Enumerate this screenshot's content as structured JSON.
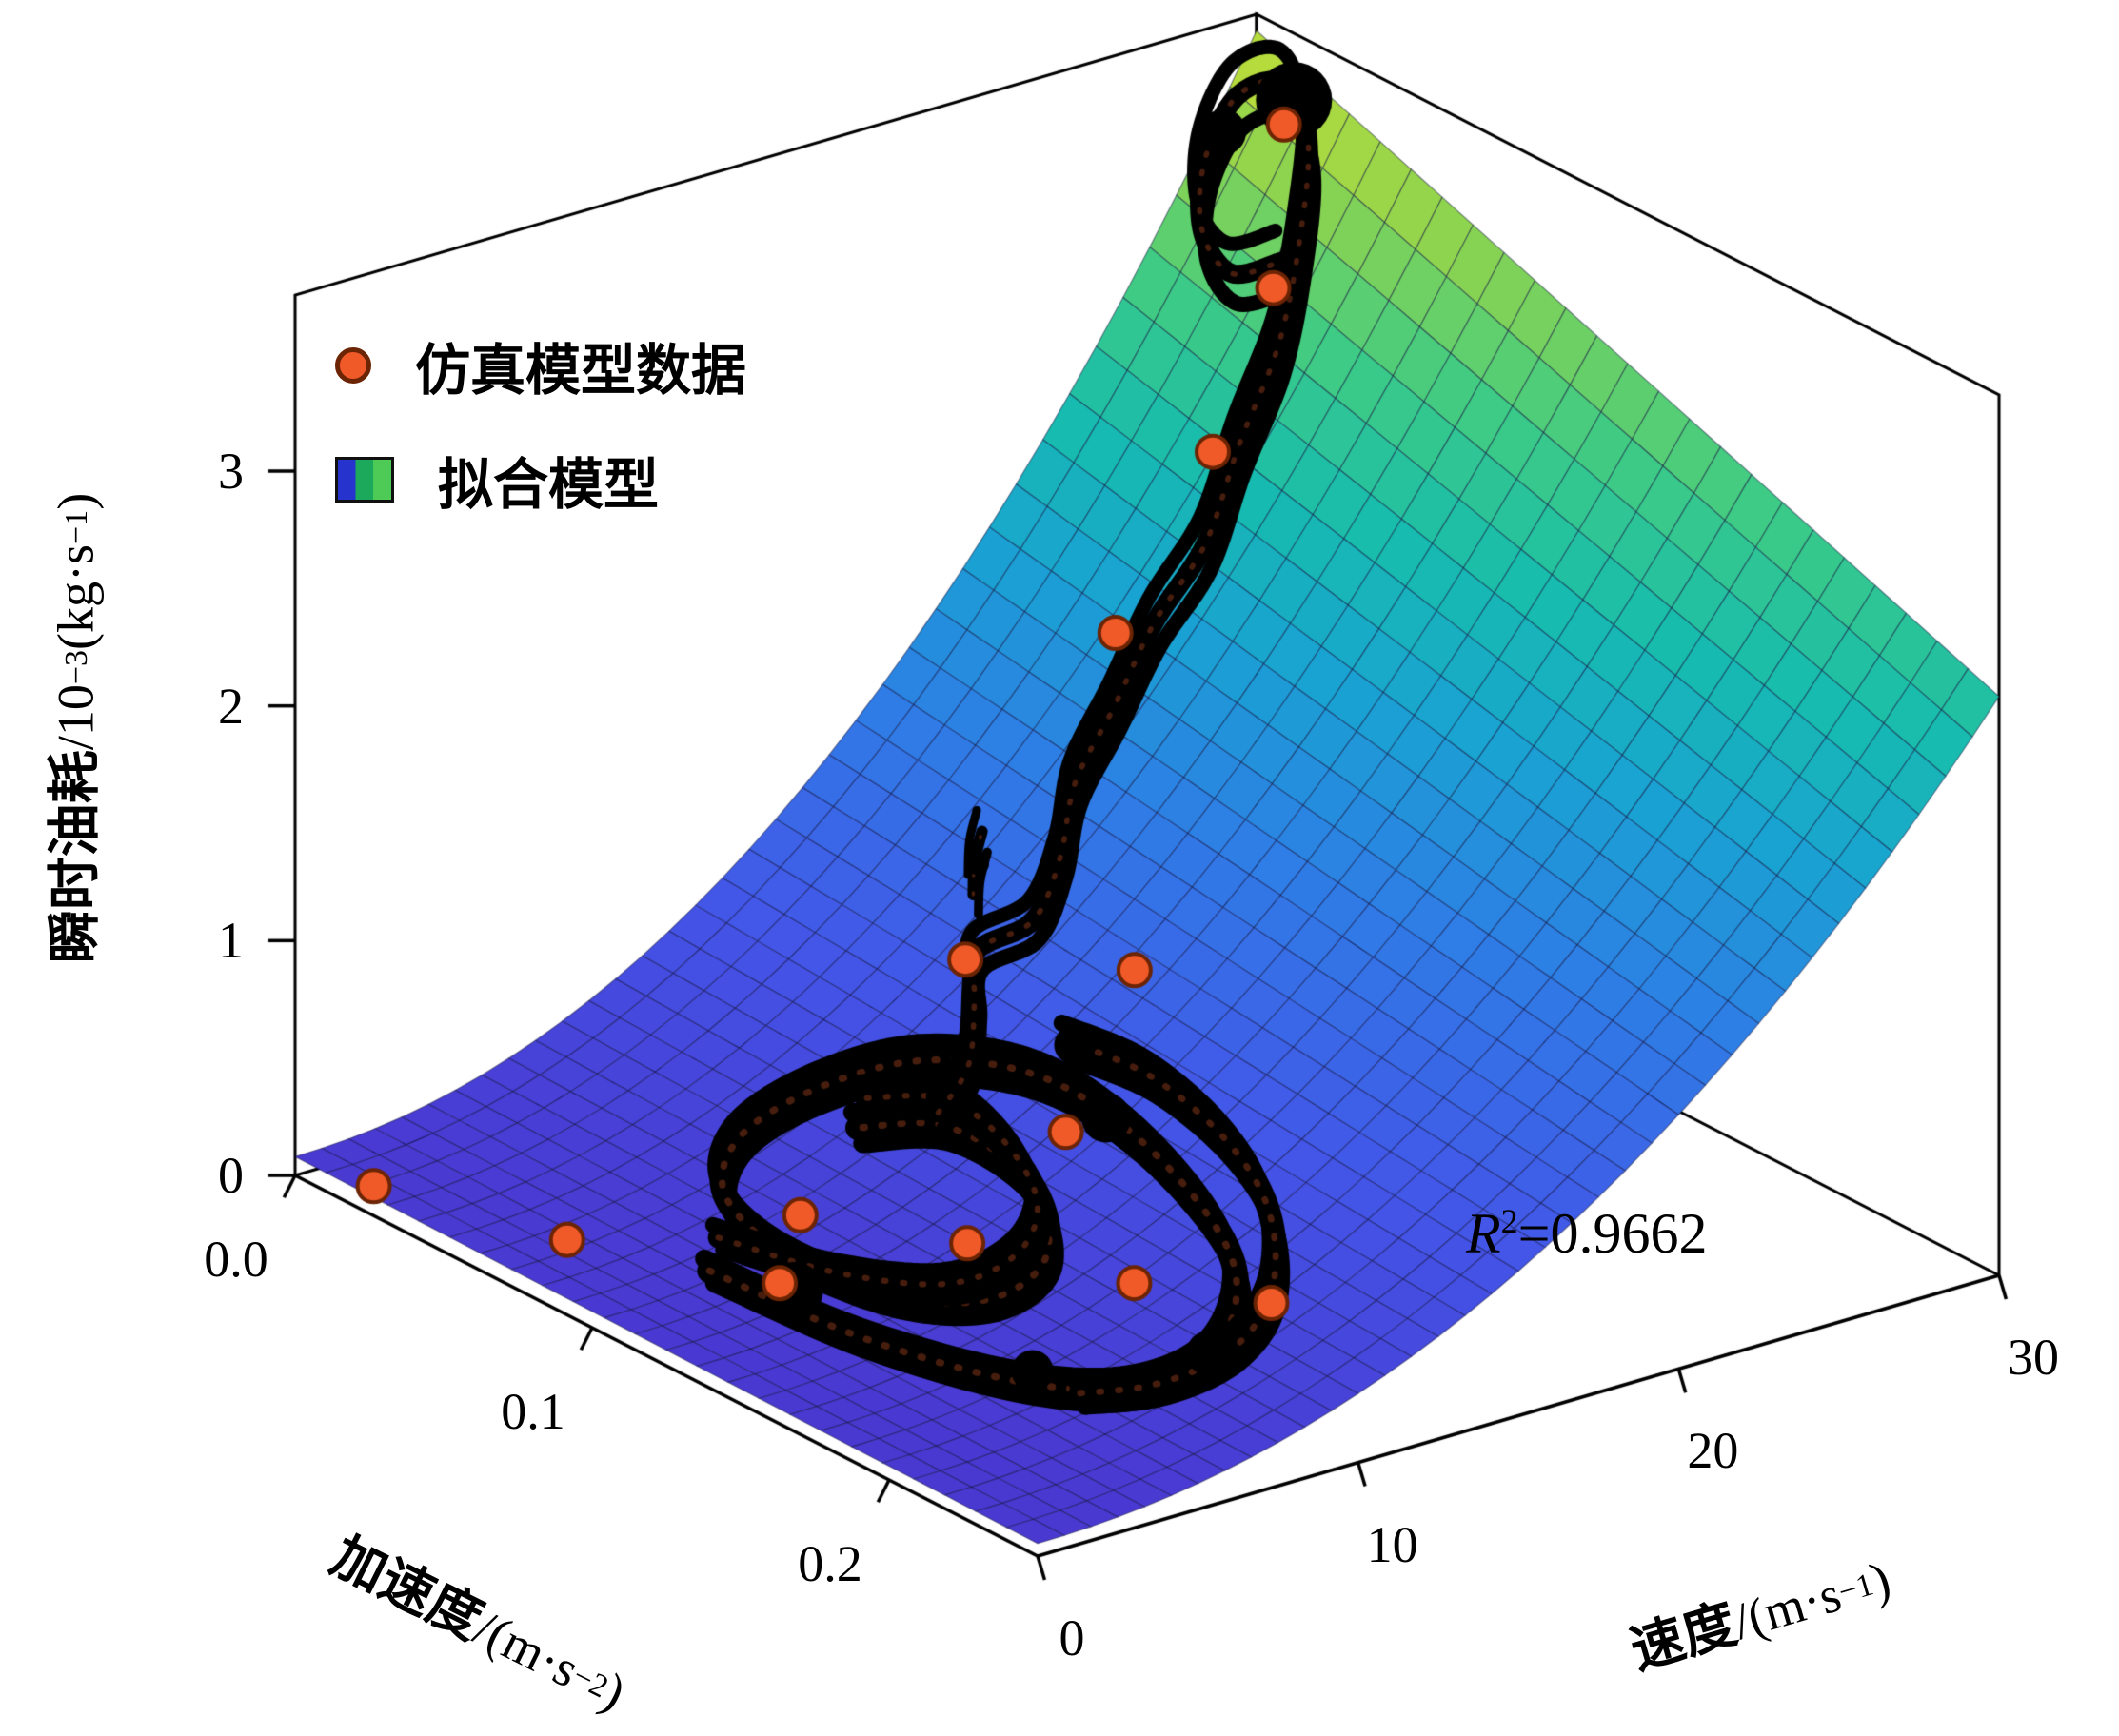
{
  "figure": {
    "background": "#ffffff"
  },
  "legend": [
    {
      "label": "仿真模型数据",
      "marker": "orange-circle",
      "marker_color": "#f05a28",
      "marker_edge": "#6b2404"
    },
    {
      "label": "拟合模型",
      "marker": "colormap-swatch",
      "swatch_colors": [
        "#2633cc",
        "#1ca95c",
        "#4ecb57"
      ]
    }
  ],
  "annotation": {
    "r2_var": "R",
    "r2_sup": "2",
    "r2_rest": "=0.9662",
    "r2_full": "R²=0.9662"
  },
  "chart_data": {
    "type": "3d-surface-with-scatter",
    "title": "",
    "r_squared": 0.9662,
    "axes": {
      "z": {
        "label": "瞬时油耗/10⁻³(kg·s⁻¹)",
        "label_parts": {
          "name": "瞬时油耗",
          "unit1": "/10",
          "sup1": "−3",
          "unit2": "(kg·s",
          "sup2": "−1",
          "unit3": ")"
        },
        "ticks": [
          "0",
          "1",
          "2",
          "3"
        ],
        "tick_values": [
          0,
          1,
          2,
          3
        ],
        "range": [
          0,
          3.75
        ]
      },
      "a": {
        "label": "加速度/(m·s⁻²)",
        "label_parts": {
          "name": "加速度",
          "unit1": "/(m·s",
          "sup1": "−2",
          "unit2": ")"
        },
        "ticks": [
          "0.0",
          "0.1",
          "0.2"
        ],
        "tick_values": [
          0,
          0.1,
          0.2
        ],
        "range": [
          0,
          0.25
        ]
      },
      "v": {
        "label": "速度/(m·s⁻¹)",
        "label_parts": {
          "name": "速度",
          "unit1": "/(m·s",
          "sup1": "−1",
          "unit2": ")"
        },
        "ticks": [
          "0",
          "10",
          "20",
          "30"
        ],
        "tick_values": [
          0,
          10,
          20,
          30
        ],
        "range": [
          0,
          30
        ]
      }
    },
    "fitted_surface": {
      "description": "fuel = (z_base + z_gain*(v/30)^v_exp) * (1 + a_coef*(a/0.25)), units 10^-3 kg/s",
      "z_base": 0.08,
      "z_gain": 3.6,
      "v_exp": 2.1,
      "a_coef": -0.33,
      "grid": {
        "nv": 36,
        "na": 24
      },
      "colormap_stops": [
        [
          0.0,
          "#4a36cf"
        ],
        [
          0.18,
          "#4356e8"
        ],
        [
          0.35,
          "#2f7ce6"
        ],
        [
          0.5,
          "#19a3d2"
        ],
        [
          0.62,
          "#17bcae"
        ],
        [
          0.75,
          "#3ecb84"
        ],
        [
          0.88,
          "#8ed44f"
        ],
        [
          1.0,
          "#c9df33"
        ]
      ],
      "color_norm_max": 3.7
    },
    "sim_points": [
      [
        0.6,
        0.02,
        0.06
      ],
      [
        2.0,
        0.07,
        0.1
      ],
      [
        4.0,
        0.12,
        0.16
      ],
      [
        6.5,
        0.1,
        0.22
      ],
      [
        8.0,
        0.14,
        0.3
      ],
      [
        9.5,
        0.18,
        0.33
      ],
      [
        11.0,
        0.21,
        0.38
      ],
      [
        12.0,
        0.13,
        0.55
      ],
      [
        13.5,
        0.08,
        0.9
      ],
      [
        16.0,
        0.11,
        0.95
      ],
      [
        20.5,
        0.055,
        1.85
      ],
      [
        24.0,
        0.05,
        2.45
      ],
      [
        27.0,
        0.038,
        2.95
      ],
      [
        29.0,
        0.02,
        3.45
      ]
    ],
    "trajectories": [
      {
        "width": 26,
        "points": [
          [
            3.2,
            0.105
          ],
          [
            3.6,
            0.15
          ],
          [
            4.8,
            0.19
          ],
          [
            6.5,
            0.212
          ],
          [
            8.8,
            0.215
          ],
          [
            11.2,
            0.195
          ],
          [
            12.6,
            0.155
          ],
          [
            12.9,
            0.115
          ],
          [
            11.8,
            0.085
          ],
          [
            9.8,
            0.07
          ],
          [
            7.6,
            0.068
          ],
          [
            5.8,
            0.082
          ],
          [
            5.0,
            0.11
          ],
          [
            5.4,
            0.142
          ],
          [
            6.8,
            0.16
          ],
          [
            8.8,
            0.158
          ],
          [
            10.4,
            0.135
          ],
          [
            10.6,
            0.105
          ],
          [
            9.4,
            0.088
          ]
        ]
      },
      {
        "width": 22,
        "points": [
          [
            4.4,
            0.095
          ],
          [
            5.2,
            0.125
          ],
          [
            6.6,
            0.148
          ],
          [
            8.4,
            0.152
          ],
          [
            10.0,
            0.142
          ],
          [
            11.0,
            0.12
          ],
          [
            11.2,
            0.098
          ],
          [
            10.2,
            0.082
          ]
        ]
      },
      {
        "width": 24,
        "points": [
          [
            5.5,
            0.205
          ],
          [
            7.0,
            0.215
          ],
          [
            9.0,
            0.218
          ],
          [
            11.0,
            0.21
          ],
          [
            12.8,
            0.19
          ],
          [
            13.8,
            0.165
          ],
          [
            14.2,
            0.135
          ],
          [
            13.9,
            0.11
          ]
        ]
      },
      {
        "width": 20,
        "points": [
          [
            10.8,
            0.1
          ],
          [
            12.2,
            0.095
          ],
          [
            13.6,
            0.082
          ],
          [
            14.6,
            0.072
          ],
          [
            15.8,
            0.078
          ],
          [
            17.2,
            0.072
          ],
          [
            18.6,
            0.062
          ],
          [
            20.2,
            0.058
          ],
          [
            21.8,
            0.054
          ],
          [
            23.4,
            0.054
          ],
          [
            25.0,
            0.048
          ],
          [
            26.6,
            0.044
          ],
          [
            28.0,
            0.036
          ],
          [
            29.2,
            0.026
          ],
          [
            29.6,
            0.014
          ],
          [
            29.0,
            0.004
          ],
          [
            28.0,
            0.004
          ],
          [
            27.2,
            0.012
          ],
          [
            27.0,
            0.024
          ],
          [
            27.6,
            0.034
          ]
        ]
      },
      {
        "width": 12,
        "points": [
          [
            15.6,
            0.06
          ],
          [
            16.2,
            0.054
          ],
          [
            16.8,
            0.05
          ]
        ]
      }
    ],
    "knots": [
      [
        29.5,
        0.018,
        40
      ],
      [
        28.5,
        0.005,
        24
      ],
      [
        4.0,
        0.125,
        30
      ],
      [
        12.8,
        0.135,
        26
      ],
      [
        8.6,
        0.215,
        24
      ],
      [
        5.4,
        0.19,
        22
      ],
      [
        13.9,
        0.112,
        20
      ],
      [
        16.2,
        0.055,
        12
      ]
    ]
  }
}
